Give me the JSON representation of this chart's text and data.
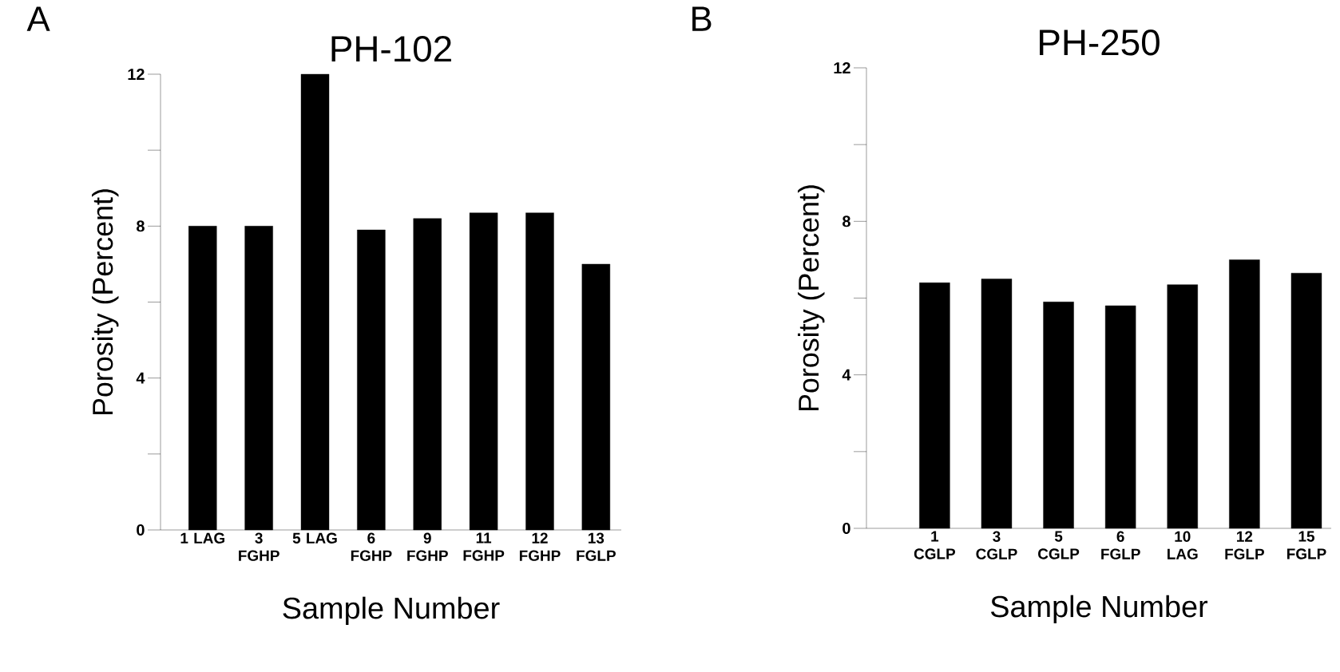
{
  "chart_data": [
    {
      "type": "bar",
      "title": "PH-102",
      "annotations": [
        "A"
      ],
      "xlabel": "Sample Number",
      "ylabel": "Porosity (Percent)",
      "categories": [
        "**1** LAG",
        "**3** FGHP",
        "**5** LAG",
        "**6** FGHP",
        "**9** FGHP",
        "**11** FGHP",
        "**12** FGHP",
        "**13** FGLP"
      ],
      "values": [
        8.0,
        8.0,
        12.0,
        7.9,
        8.2,
        8.35,
        8.35,
        7.0
      ],
      "color": "#000000",
      "ylim": [
        0,
        12
      ],
      "yticks": [
        0,
        {
          "value": 2,
          "label": null
        },
        4,
        {
          "value": 6,
          "label": null
        },
        8,
        {
          "value": 10,
          "label": null
        },
        12
      ]
    },
    {
      "type": "bar",
      "title": "PH-250",
      "annotations": [
        "B"
      ],
      "xlabel": "Sample Number",
      "ylabel": "Porosity (Percent)",
      "categories": [
        "**1** CGLP",
        "**3** CGLP",
        "**5** CGLP",
        "**6** FGLP",
        "**10** LAG",
        "**12** FGLP",
        "**15** FGLP"
      ],
      "values": [
        6.4,
        6.5,
        5.9,
        5.8,
        6.35,
        7.0,
        6.65
      ],
      "color": "#000000",
      "ylim": [
        0,
        12
      ],
      "yticks": [
        0,
        {
          "value": 2,
          "label": null
        },
        4,
        {
          "value": 6,
          "label": null
        },
        8,
        {
          "value": 10,
          "label": null
        },
        12
      ]
    }
  ]
}
